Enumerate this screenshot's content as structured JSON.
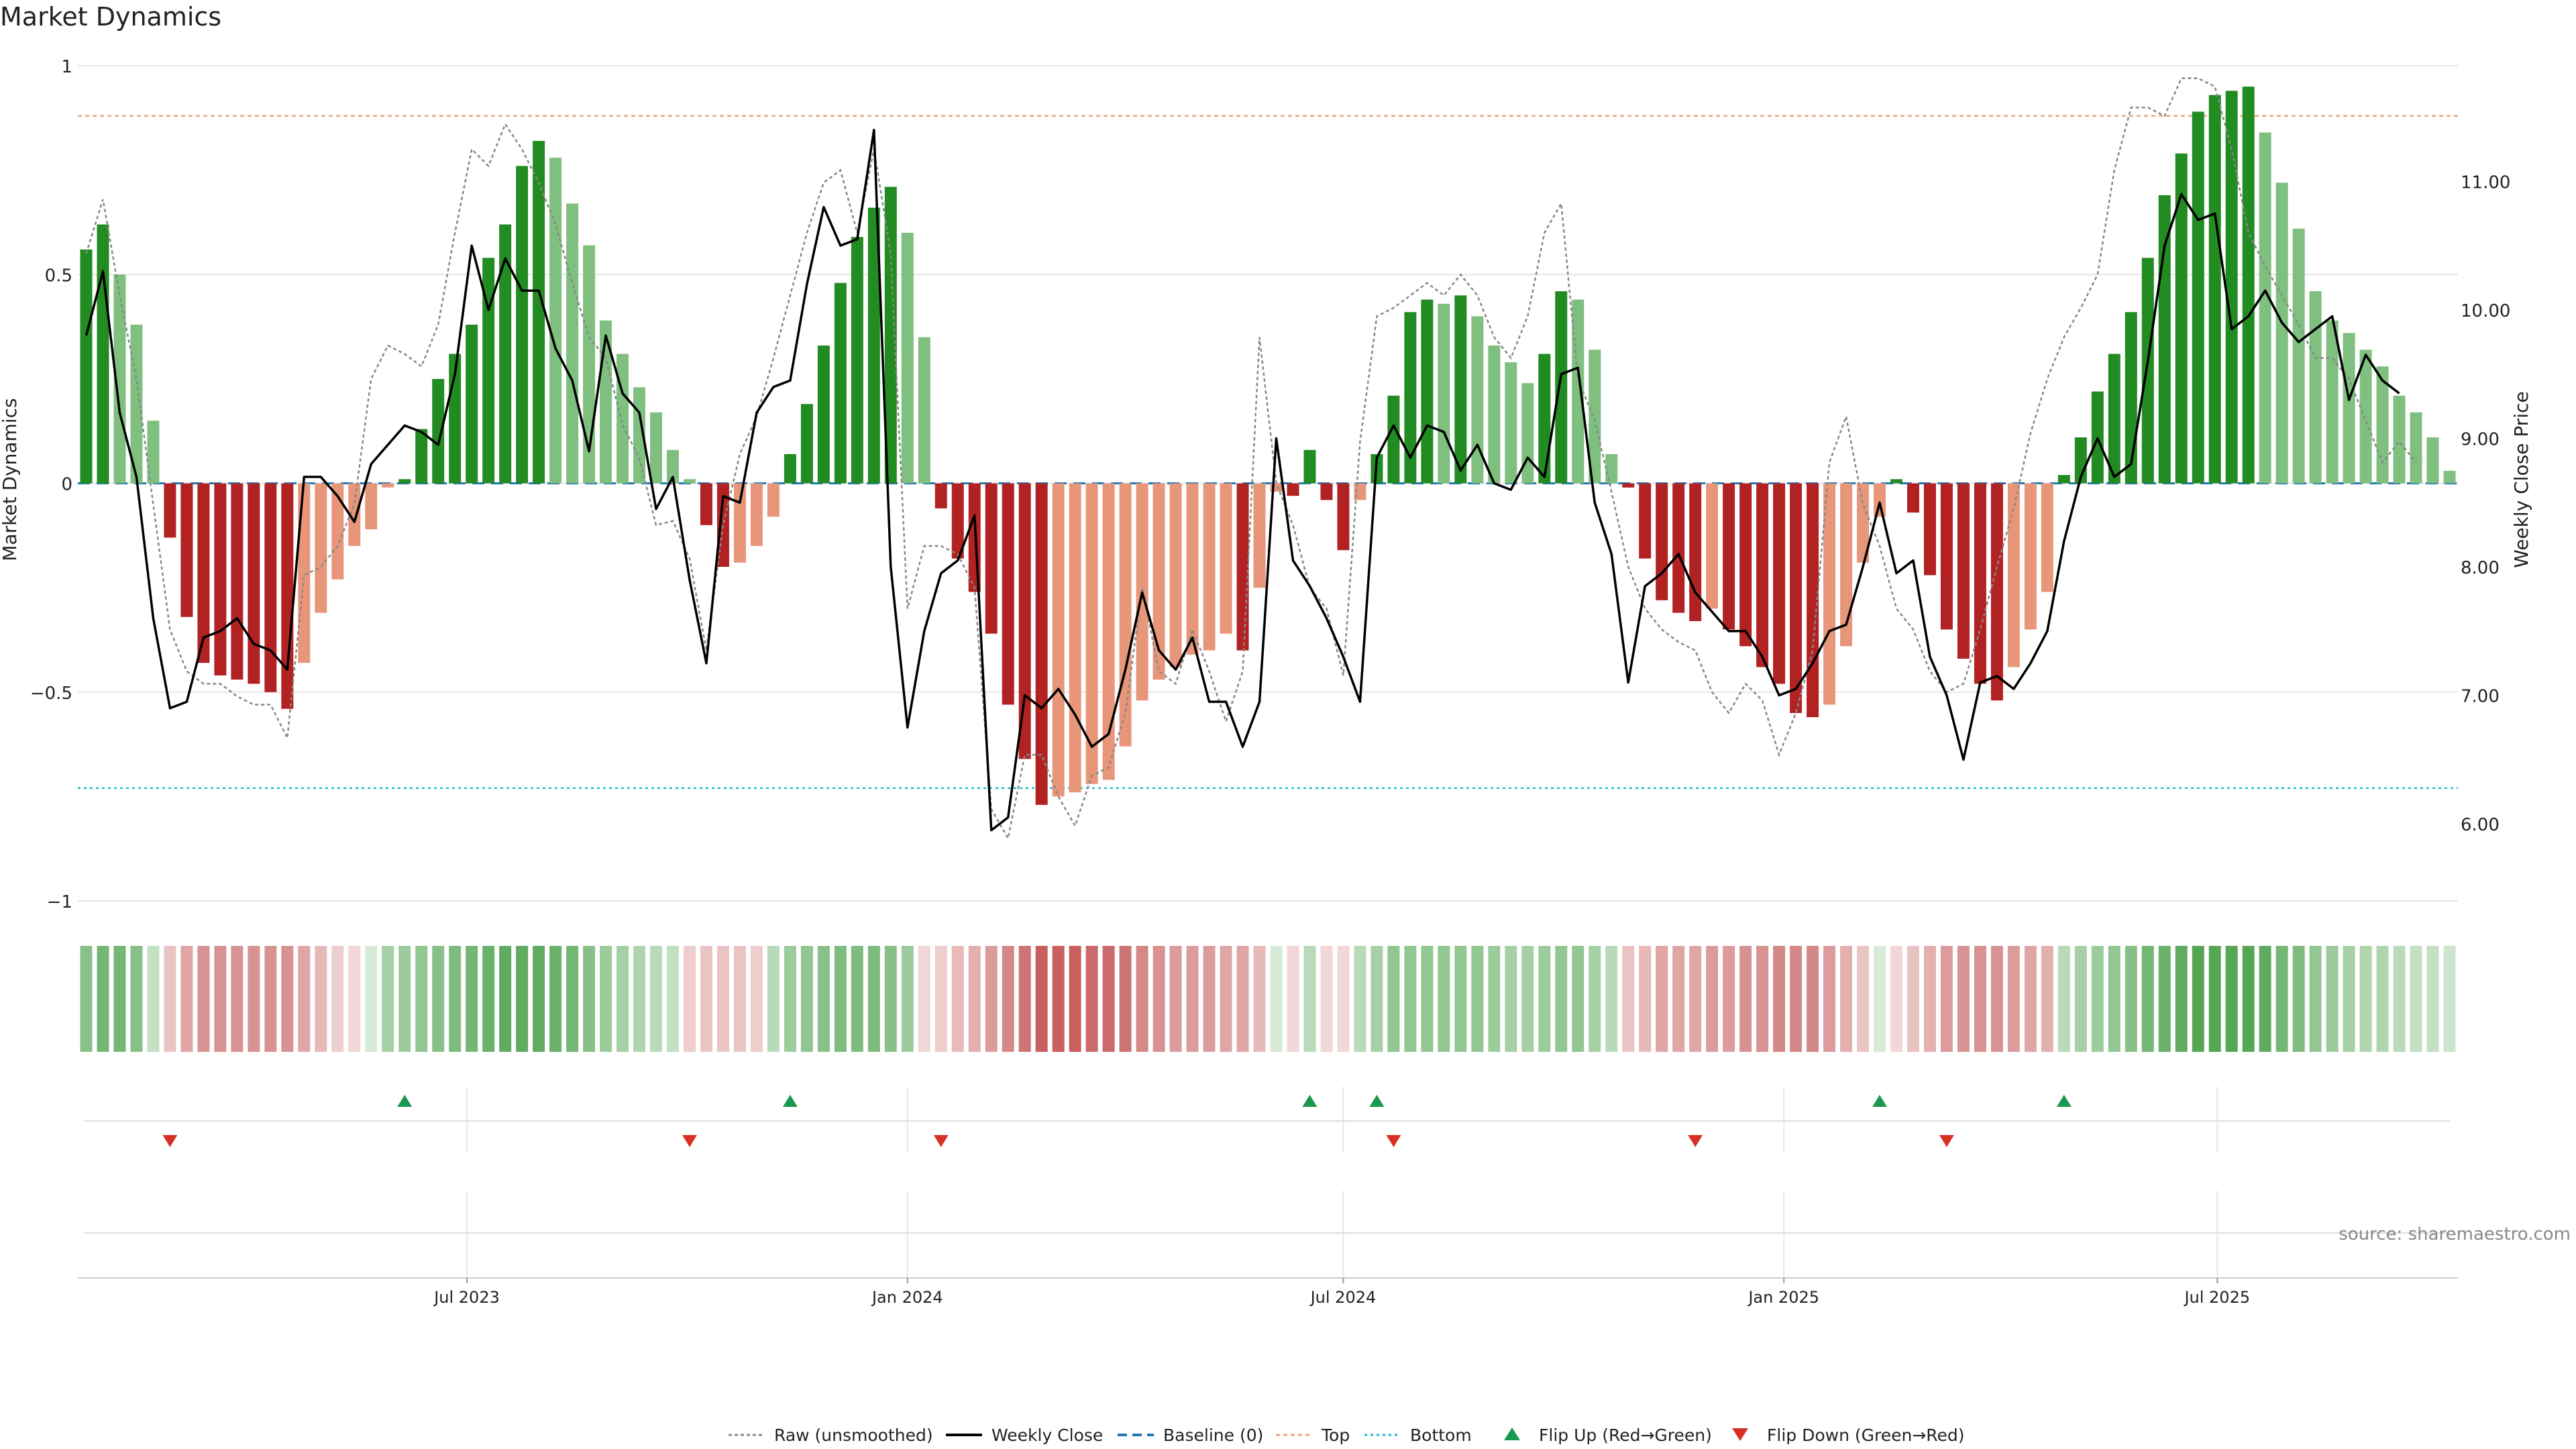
{
  "title": "Market Dynamics",
  "source": "source: sharemaestro.com",
  "legend": [
    {
      "label": "Raw (unsmoothed)",
      "icon": "dotted-line-icon"
    },
    {
      "label": "Weekly Close",
      "icon": "solid-line-icon"
    },
    {
      "label": "Baseline (0)",
      "icon": "dashed-line-icon"
    },
    {
      "label": "Top",
      "icon": "dotted-line-icon"
    },
    {
      "label": "Bottom",
      "icon": "dotted-line-icon"
    },
    {
      "label": "Flip Up (Red→Green)",
      "icon": "triangle-up-icon"
    },
    {
      "label": "Flip Down (Green→Red)",
      "icon": "triangle-down-icon"
    }
  ],
  "colors": {
    "strong_green": "#228b22",
    "light_green": "#7fbf7f",
    "strong_red": "#b22222",
    "light_red": "#e8967a",
    "close_line": "#000000",
    "raw_line": "#888888",
    "baseline": "#1f77b4",
    "top": "#e8a87c",
    "bottom": "#17becf",
    "flip_up": "#1a9850",
    "flip_down": "#d73027"
  },
  "chart_data": {
    "type": "bar",
    "title": "Market Dynamics",
    "ylabel": "Market Dynamics",
    "y2label": "Weekly Close Price",
    "ylim": [
      -1,
      1
    ],
    "yticks": [
      "1",
      "0.5",
      "0",
      "−0.5",
      "−1"
    ],
    "y2lim": [
      5.4,
      11.9
    ],
    "y2ticks": [
      "11.00",
      "10.00",
      "9.00",
      "8.00",
      "7.00",
      "6.00"
    ],
    "xtick_labels": [
      "Jul 2023",
      "Jan 2024",
      "Jul 2024",
      "Jan 2025",
      "Jul 2025"
    ],
    "top_level": 0.88,
    "bottom_level": -0.73,
    "baseline": 0,
    "first_week": "2023-01-23",
    "dynamics": [
      0.56,
      0.62,
      0.5,
      0.38,
      0.15,
      -0.13,
      -0.32,
      -0.43,
      -0.46,
      -0.47,
      -0.48,
      -0.5,
      -0.54,
      -0.43,
      -0.31,
      -0.23,
      -0.15,
      -0.11,
      -0.01,
      0.01,
      0.13,
      0.25,
      0.31,
      0.38,
      0.54,
      0.62,
      0.76,
      0.82,
      0.78,
      0.67,
      0.57,
      0.39,
      0.31,
      0.23,
      0.17,
      0.08,
      0.01,
      -0.1,
      -0.2,
      -0.19,
      -0.15,
      -0.08,
      0.07,
      0.19,
      0.33,
      0.48,
      0.59,
      0.66,
      0.71,
      0.6,
      0.35,
      -0.06,
      -0.18,
      -0.26,
      -0.36,
      -0.53,
      -0.66,
      -0.77,
      -0.75,
      -0.74,
      -0.72,
      -0.71,
      -0.63,
      -0.52,
      -0.47,
      -0.44,
      -0.41,
      -0.4,
      -0.36,
      -0.4,
      -0.25,
      -0.02,
      -0.03,
      0.08,
      -0.04,
      -0.16,
      -0.04,
      0.07,
      0.21,
      0.41,
      0.44,
      0.43,
      0.45,
      0.4,
      0.33,
      0.29,
      0.24,
      0.31,
      0.46,
      0.44,
      0.32,
      0.07,
      -0.01,
      -0.18,
      -0.28,
      -0.31,
      -0.33,
      -0.3,
      -0.35,
      -0.39,
      -0.44,
      -0.48,
      -0.55,
      -0.56,
      -0.53,
      -0.39,
      -0.19,
      -0.08,
      0.01,
      -0.07,
      -0.22,
      -0.35,
      -0.42,
      -0.48,
      -0.52,
      -0.44,
      -0.35,
      -0.26,
      0.02,
      0.11,
      0.22,
      0.31,
      0.41,
      0.54,
      0.69,
      0.79,
      0.89,
      0.93,
      0.94,
      0.95,
      0.84,
      0.72,
      0.61,
      0.46,
      0.39,
      0.36,
      0.32,
      0.28,
      0.21,
      0.17,
      0.11,
      0.03
    ],
    "close": [
      9.8,
      10.3,
      9.2,
      8.7,
      7.6,
      6.9,
      6.95,
      7.45,
      7.5,
      7.6,
      7.4,
      7.35,
      7.2,
      8.7,
      8.7,
      8.55,
      8.35,
      8.8,
      8.95,
      9.1,
      9.05,
      8.95,
      9.5,
      10.5,
      10.0,
      10.4,
      10.15,
      10.15,
      9.7,
      9.45,
      8.9,
      9.8,
      9.35,
      9.2,
      8.45,
      8.7,
      7.9,
      7.25,
      8.55,
      8.5,
      9.2,
      9.4,
      9.45,
      10.2,
      10.8,
      10.5,
      10.55,
      11.4,
      8.0,
      6.75,
      7.5,
      7.95,
      8.05,
      8.4,
      5.95,
      6.05,
      7.0,
      6.9,
      7.05,
      6.85,
      6.6,
      6.7,
      7.2,
      7.8,
      7.35,
      7.2,
      7.45,
      6.95,
      6.95,
      6.6,
      6.95,
      9.0,
      8.05,
      7.85,
      7.6,
      7.3,
      6.95,
      8.85,
      9.1,
      8.85,
      9.1,
      9.05,
      8.75,
      8.95,
      8.65,
      8.6,
      8.85,
      8.7,
      9.5,
      9.55,
      8.5,
      8.1,
      7.1,
      7.85,
      7.95,
      8.1,
      7.8,
      7.65,
      7.5,
      7.5,
      7.3,
      7.0,
      7.05,
      7.25,
      7.5,
      7.55,
      8.0,
      8.5,
      7.95,
      8.05,
      7.3,
      7.0,
      6.5,
      7.1,
      7.15,
      7.05,
      7.25,
      7.5,
      8.2,
      8.7,
      9.0,
      8.7,
      8.8,
      9.6,
      10.5,
      10.9,
      10.7,
      10.75,
      9.85,
      9.95,
      10.15,
      9.9,
      9.75,
      9.85,
      9.95,
      9.3,
      9.65,
      9.45,
      9.35
    ],
    "raw": [
      0.55,
      0.68,
      0.45,
      0.25,
      -0.05,
      -0.35,
      -0.45,
      -0.48,
      -0.48,
      -0.51,
      -0.53,
      -0.53,
      -0.61,
      -0.22,
      -0.2,
      -0.15,
      -0.05,
      0.25,
      0.33,
      0.31,
      0.28,
      0.38,
      0.6,
      0.8,
      0.76,
      0.86,
      0.8,
      0.72,
      0.62,
      0.48,
      0.35,
      0.3,
      0.14,
      0.06,
      -0.1,
      -0.09,
      -0.18,
      -0.4,
      -0.1,
      0.07,
      0.16,
      0.3,
      0.45,
      0.6,
      0.72,
      0.75,
      0.6,
      0.8,
      0.55,
      -0.3,
      -0.15,
      -0.15,
      -0.17,
      -0.25,
      -0.78,
      -0.85,
      -0.65,
      -0.65,
      -0.75,
      -0.82,
      -0.7,
      -0.68,
      -0.55,
      -0.25,
      -0.45,
      -0.48,
      -0.35,
      -0.45,
      -0.57,
      -0.45,
      0.35,
      0.0,
      -0.1,
      -0.25,
      -0.3,
      -0.46,
      0.1,
      0.4,
      0.42,
      0.45,
      0.48,
      0.45,
      0.5,
      0.45,
      0.35,
      0.3,
      0.4,
      0.6,
      0.67,
      0.25,
      0.15,
      -0.02,
      -0.2,
      -0.3,
      -0.35,
      -0.38,
      -0.4,
      -0.5,
      -0.55,
      -0.48,
      -0.52,
      -0.65,
      -0.55,
      -0.4,
      0.05,
      0.16,
      -0.05,
      -0.15,
      -0.3,
      -0.35,
      -0.45,
      -0.5,
      -0.48,
      -0.35,
      -0.2,
      -0.06,
      0.12,
      0.25,
      0.35,
      0.42,
      0.5,
      0.75,
      0.9,
      0.9,
      0.88,
      0.97,
      0.97,
      0.95,
      0.8,
      0.6,
      0.52,
      0.45,
      0.38,
      0.3,
      0.3,
      0.25,
      0.15,
      0.05,
      0.1,
      0.05
    ],
    "heat_strip": [
      0.6,
      0.7,
      0.7,
      0.6,
      0.3,
      -0.3,
      -0.45,
      -0.55,
      -0.55,
      -0.55,
      -0.55,
      -0.55,
      -0.55,
      -0.45,
      -0.35,
      -0.25,
      -0.2,
      0.2,
      0.45,
      0.5,
      0.55,
      0.6,
      0.65,
      0.7,
      0.75,
      0.8,
      0.8,
      0.8,
      0.75,
      0.7,
      0.6,
      0.5,
      0.45,
      0.4,
      0.35,
      0.3,
      -0.25,
      -0.3,
      -0.3,
      -0.3,
      -0.25,
      0.35,
      0.5,
      0.55,
      0.6,
      0.65,
      0.65,
      0.65,
      0.6,
      0.5,
      -0.2,
      -0.25,
      -0.35,
      -0.4,
      -0.5,
      -0.6,
      -0.7,
      -0.8,
      -0.8,
      -0.8,
      -0.75,
      -0.75,
      -0.7,
      -0.6,
      -0.55,
      -0.5,
      -0.5,
      -0.5,
      -0.45,
      -0.45,
      -0.35,
      0.2,
      -0.2,
      0.35,
      -0.2,
      -0.2,
      0.35,
      0.45,
      0.55,
      0.55,
      0.55,
      0.55,
      0.55,
      0.55,
      0.5,
      0.45,
      0.45,
      0.5,
      0.55,
      0.55,
      0.45,
      0.35,
      -0.3,
      -0.35,
      -0.45,
      -0.45,
      -0.45,
      -0.5,
      -0.5,
      -0.55,
      -0.55,
      -0.6,
      -0.6,
      -0.6,
      -0.5,
      -0.4,
      -0.3,
      0.2,
      -0.2,
      -0.3,
      -0.4,
      -0.5,
      -0.55,
      -0.55,
      -0.55,
      -0.5,
      -0.45,
      -0.4,
      0.35,
      0.45,
      0.5,
      0.55,
      0.6,
      0.7,
      0.75,
      0.8,
      0.85,
      0.85,
      0.85,
      0.85,
      0.8,
      0.7,
      0.65,
      0.55,
      0.5,
      0.45,
      0.4,
      0.4,
      0.35,
      0.3,
      0.3,
      0.25
    ],
    "flip_up_weeks": [
      19,
      42,
      73,
      77,
      107,
      118
    ],
    "flip_down_weeks": [
      5,
      36,
      51,
      78,
      96,
      111
    ]
  }
}
